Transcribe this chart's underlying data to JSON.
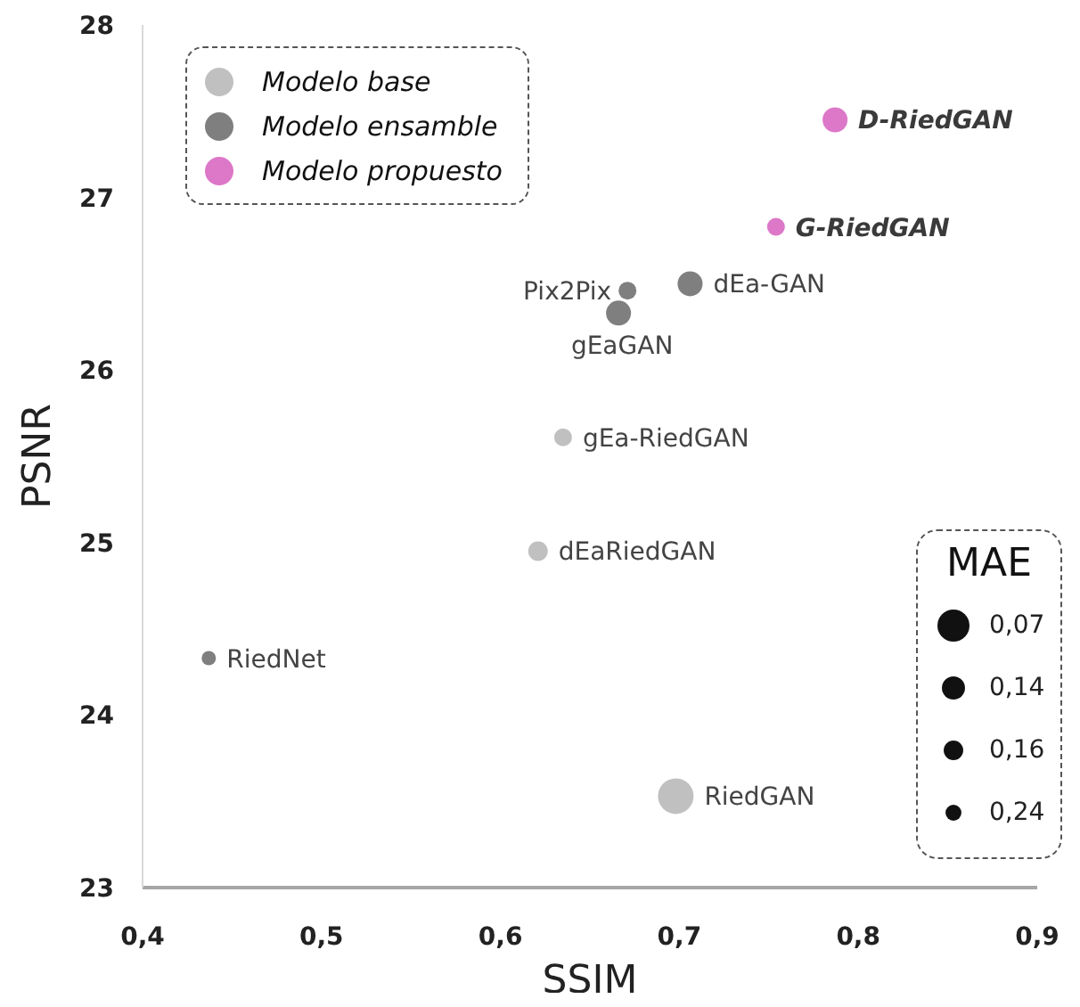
{
  "chart_data": {
    "type": "bubble",
    "xlabel": "SSIM",
    "ylabel": "PSNR",
    "xlim": [
      0.4,
      0.9
    ],
    "xticks": [
      {
        "value": 0.4,
        "label": "0,4"
      },
      {
        "value": 0.5,
        "label": "0,5"
      },
      {
        "value": 0.6,
        "label": "0,6"
      },
      {
        "value": 0.7,
        "label": "0,7"
      },
      {
        "value": 0.8,
        "label": "0,8"
      },
      {
        "value": 0.9,
        "label": "0,9"
      }
    ],
    "ylim": [
      23,
      28
    ],
    "yticks": [
      23,
      24,
      25,
      26,
      27,
      28
    ],
    "grid": false,
    "legend": "top left",
    "legend_title": "MAE",
    "size_legend": [
      {
        "value": 0.81,
        "label": "0,07"
      },
      {
        "value": 0.42,
        "label": "0,14"
      },
      {
        "value": 0.3,
        "label": "0,16"
      },
      {
        "value": 0.2,
        "label": "0,24"
      }
    ],
    "series": [
      {
        "name": "Modelo base",
        "color": "#c0c0c0",
        "x": [
          0.635,
          0.621,
          0.698
        ],
        "values": [
          25.61,
          24.95,
          23.53
        ],
        "sizes": [
          0.25,
          0.3,
          1
        ],
        "value_labels": [
          "gEa-RiedGAN",
          "dEaRiedGAN",
          "RiedGAN"
        ]
      },
      {
        "name": "Modelo ensamble",
        "color": "#7f7f7f",
        "x": [
          0.671,
          0.666,
          0.706,
          0.437
        ],
        "values": [
          26.46,
          26.33,
          26.5,
          24.33
        ],
        "sizes": [
          0.25,
          0.49,
          0.49,
          0.16
        ],
        "value_labels": [
          "Pix2Pix",
          "gEaGAN",
          "dEa-GAN",
          "RiedNet"
        ]
      },
      {
        "name": "Modelo propuesto",
        "color": "#dd77c8",
        "x": [
          0.787,
          0.754
        ],
        "values": [
          27.45,
          26.83
        ],
        "sizes": [
          0.49,
          0.25
        ],
        "value_labels": [
          "D-RiedGAN",
          "G-RiedGAN"
        ]
      }
    ]
  }
}
